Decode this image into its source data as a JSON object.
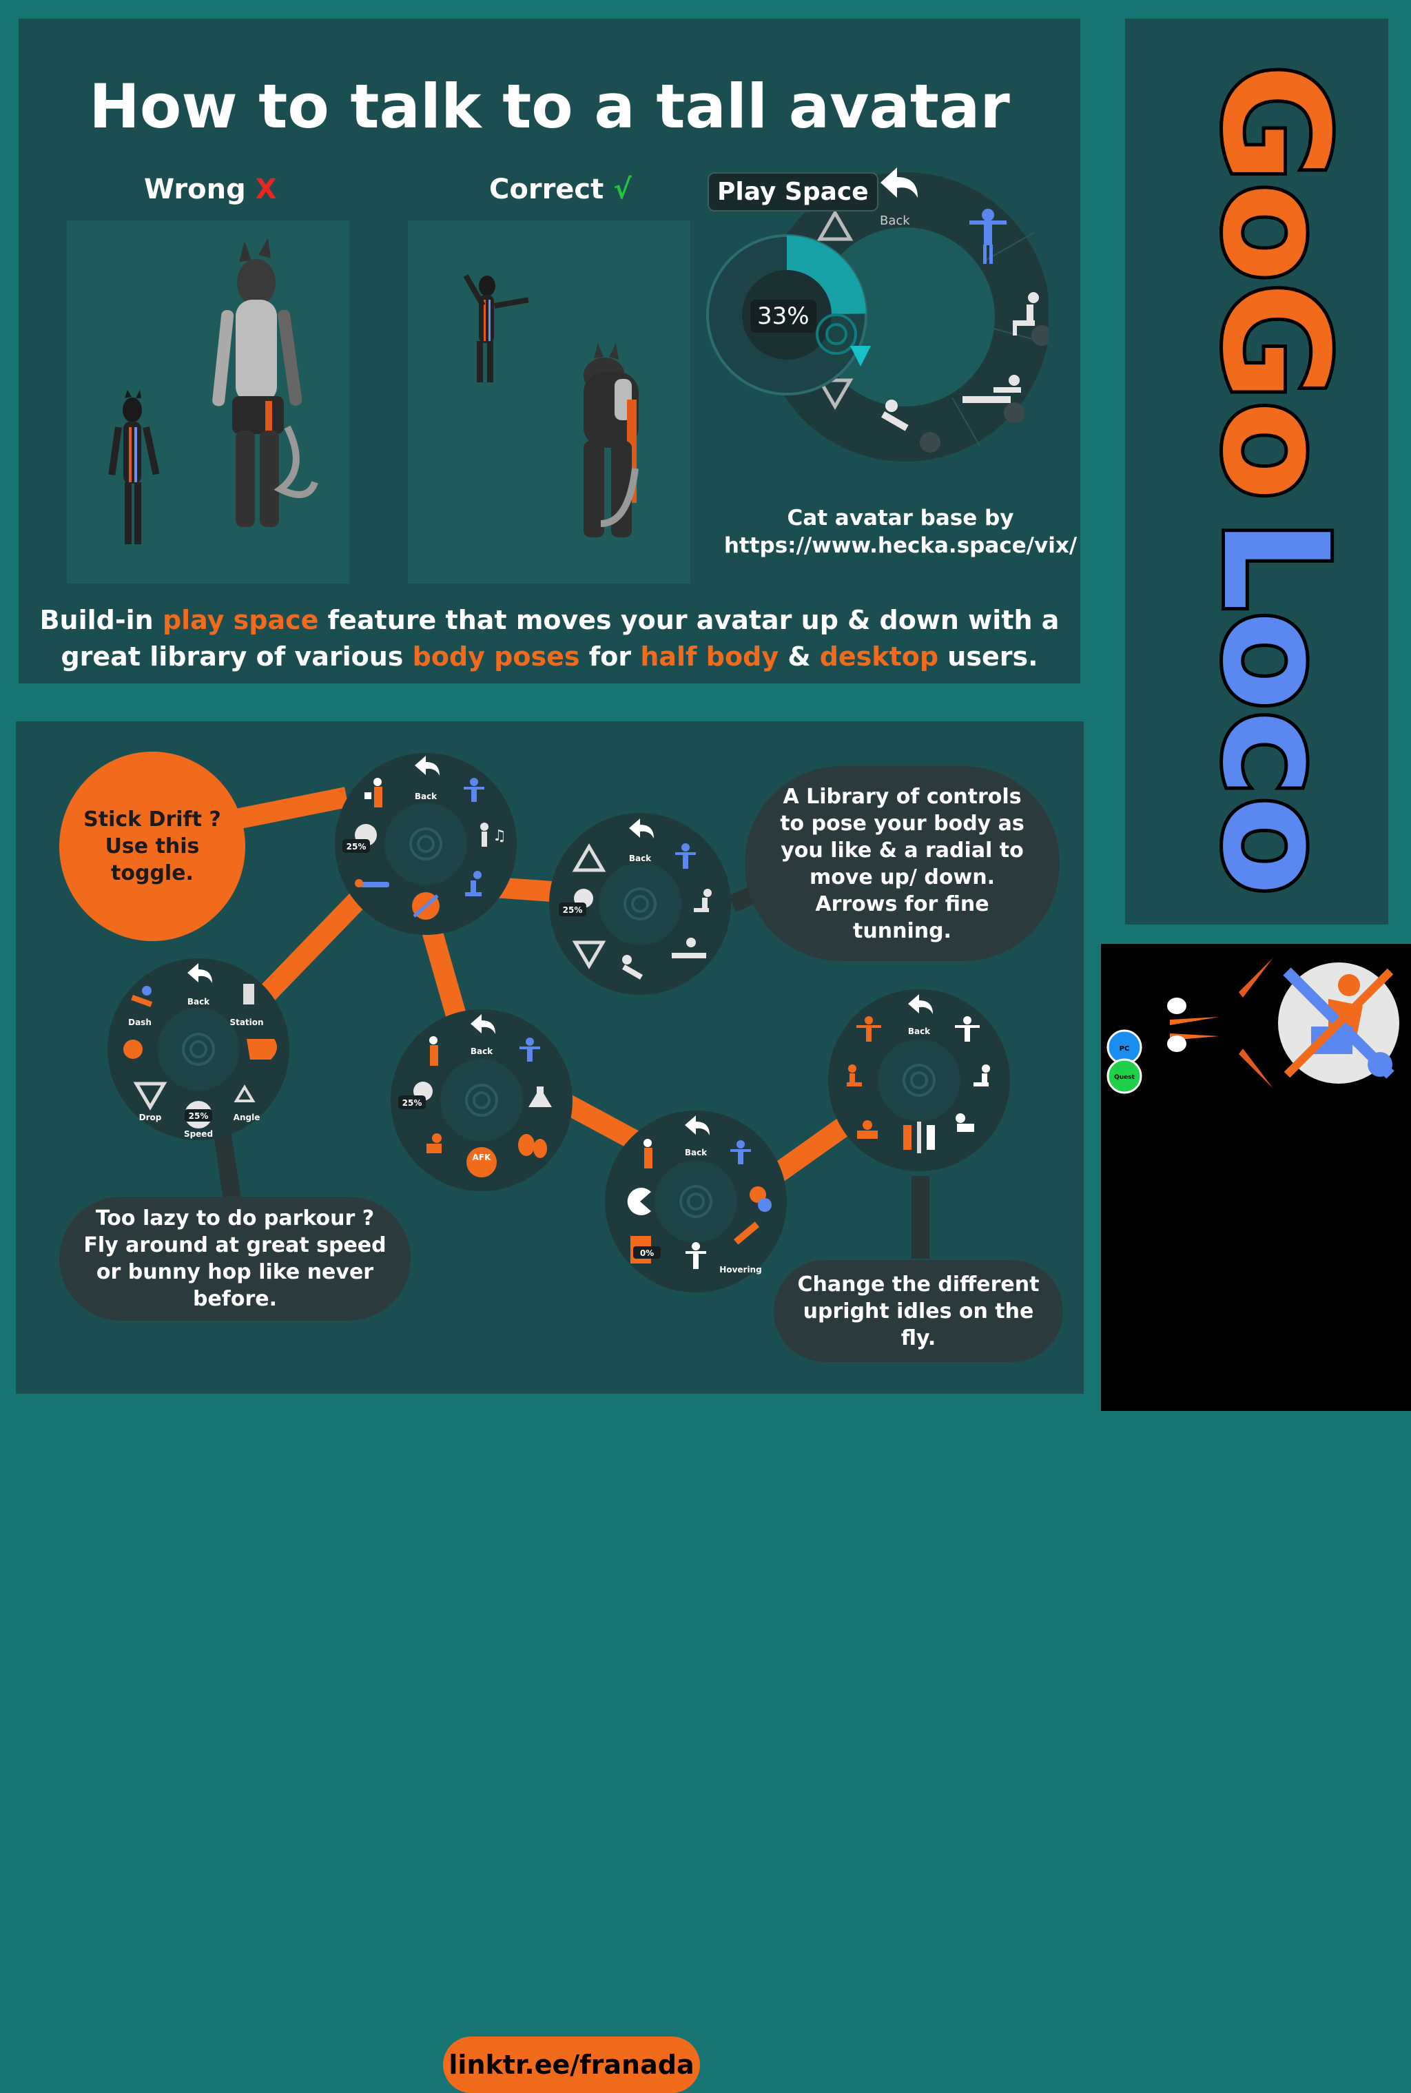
{
  "header": {
    "title": "How to talk to a tall avatar",
    "wrong_label": "Wrong",
    "wrong_mark": "X",
    "correct_label": "Correct",
    "correct_mark": "√"
  },
  "play_space": {
    "label": "Play Space",
    "back_label": "Back",
    "percent": "33%",
    "fill_fraction": 0.33
  },
  "credit": {
    "line1": "Cat avatar base by",
    "line2": "https://www.hecka.space/vix/"
  },
  "description": {
    "t1": "Build-in ",
    "h1": "play space",
    "t2": " feature that moves your avatar up & down with a great library of various ",
    "h2": "body poses",
    "t3": " for ",
    "h3": "half body",
    "t4": " & ",
    "h4": "desktop",
    "t5": " users."
  },
  "bubbles": {
    "stick_drift": "Stick Drift ? Use this toggle.",
    "library": "A Library of controls to pose your body as you like & a radial to move up/ down. Arrows for fine tunning.",
    "parkour": "Too lazy to do parkour ? Fly around at great speed or bunny hop like never before.",
    "idles": "Change the different upright idles on the fly."
  },
  "menus": {
    "back": "Back",
    "pct25": "25%",
    "pct0": "0%",
    "dash": "Dash",
    "station": "Station",
    "drop": "Drop",
    "speed": "Speed",
    "angle": "Angle",
    "hovering": "Hovering",
    "afk": "AFK"
  },
  "link": "linktr.ee/franada",
  "logo": {
    "word1": "GoGo",
    "word2": "Loco",
    "color1": "#f26b1d",
    "color2": "#5b87f0",
    "pc": "PC",
    "quest": "Quest"
  },
  "colors": {
    "accent": "#f26b1d",
    "panel": "#1b4e51",
    "background": "#167572",
    "radial": "#1e3a3c"
  }
}
